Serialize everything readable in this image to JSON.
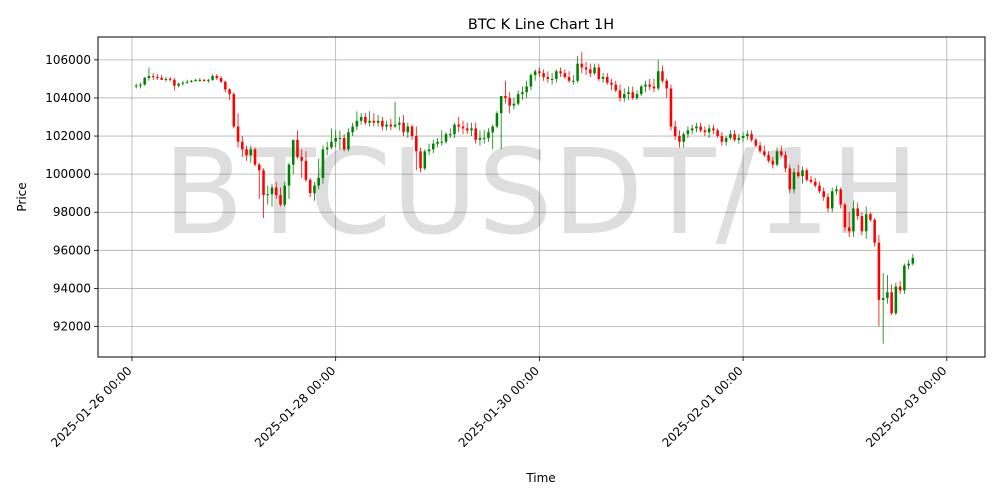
{
  "chart_data": {
    "type": "candlestick",
    "title": "BTC K Line Chart 1H",
    "xlabel": "Time",
    "ylabel": "Price",
    "watermark": "BTCUSDT/1H",
    "grid": true,
    "up_color": "#008000",
    "down_color": "#ff0000",
    "ylim": [
      90400,
      107200
    ],
    "x_range": [
      "2025-01-25 16:00",
      "2025-02-03 09:00"
    ],
    "y_ticks": [
      92000,
      94000,
      96000,
      98000,
      100000,
      102000,
      104000,
      106000
    ],
    "x_ticks": [
      "2025-01-26 00:00",
      "2025-01-28 00:00",
      "2025-01-30 00:00",
      "2025-02-01 00:00",
      "2025-02-03 00:00"
    ],
    "ohlc_start": "2025-01-26 01:00",
    "ohlc_interval": "1H",
    "ohlc_columns": [
      "open",
      "high",
      "low",
      "close"
    ],
    "ohlc": [
      [
        104600,
        104750,
        104500,
        104650
      ],
      [
        104650,
        104800,
        104500,
        104700
      ],
      [
        104700,
        105100,
        104650,
        105050
      ],
      [
        105050,
        105600,
        104900,
        105150
      ],
      [
        105150,
        105300,
        104950,
        105100
      ],
      [
        105100,
        105250,
        104950,
        105050
      ],
      [
        105050,
        105200,
        104950,
        104950
      ],
      [
        104950,
        105100,
        104850,
        105000
      ],
      [
        105000,
        105100,
        104850,
        104950
      ],
      [
        104950,
        105050,
        104400,
        104650
      ],
      [
        104650,
        104800,
        104550,
        104750
      ],
      [
        104750,
        104900,
        104650,
        104800
      ],
      [
        104800,
        104950,
        104750,
        104850
      ],
      [
        104850,
        104950,
        104800,
        104900
      ],
      [
        104900,
        105000,
        104850,
        104950
      ],
      [
        104950,
        105050,
        104850,
        104950
      ],
      [
        104950,
        105000,
        104850,
        104900
      ],
      [
        104900,
        105000,
        104800,
        104950
      ],
      [
        104950,
        105250,
        104900,
        105150
      ],
      [
        105150,
        105250,
        104950,
        105050
      ],
      [
        105050,
        105150,
        104800,
        104850
      ],
      [
        104850,
        104900,
        104300,
        104450
      ],
      [
        104450,
        104500,
        103900,
        104200
      ],
      [
        104200,
        104300,
        102400,
        102500
      ],
      [
        102500,
        103200,
        101400,
        101700
      ],
      [
        101700,
        102000,
        100900,
        101300
      ],
      [
        101300,
        101500,
        100700,
        101000
      ],
      [
        101000,
        101500,
        100600,
        101300
      ],
      [
        101300,
        101400,
        100400,
        100500
      ],
      [
        100500,
        100600,
        98700,
        100200
      ],
      [
        100200,
        100300,
        97700,
        98900
      ],
      [
        98900,
        99400,
        98400,
        98950
      ],
      [
        98950,
        99500,
        98300,
        99300
      ],
      [
        99300,
        99600,
        98700,
        98900
      ],
      [
        98900,
        99300,
        98300,
        98400
      ],
      [
        98400,
        99600,
        98300,
        99400
      ],
      [
        99400,
        100600,
        98700,
        100500
      ],
      [
        100500,
        101800,
        100000,
        101800
      ],
      [
        101800,
        102300,
        100800,
        100900
      ],
      [
        100900,
        101300,
        99800,
        100700
      ],
      [
        100700,
        101200,
        99600,
        99700
      ],
      [
        99700,
        99800,
        98800,
        99000
      ],
      [
        99000,
        99600,
        98600,
        99400
      ],
      [
        99400,
        100800,
        99200,
        99800
      ],
      [
        99800,
        101500,
        99500,
        101300
      ],
      [
        101300,
        101700,
        101000,
        101400
      ],
      [
        101400,
        102400,
        101300,
        101700
      ],
      [
        101700,
        102300,
        101400,
        101900
      ],
      [
        101900,
        102300,
        101300,
        101900
      ],
      [
        101900,
        102100,
        101200,
        101300
      ],
      [
        101300,
        102400,
        101200,
        102200
      ],
      [
        102200,
        102700,
        102000,
        102500
      ],
      [
        102500,
        103300,
        102300,
        102800
      ],
      [
        102800,
        103200,
        102600,
        103000
      ],
      [
        103000,
        103200,
        102600,
        102700
      ],
      [
        102700,
        103300,
        102500,
        102800
      ],
      [
        102800,
        103200,
        102500,
        102700
      ],
      [
        102700,
        103100,
        102500,
        102800
      ],
      [
        102800,
        103000,
        102300,
        102500
      ],
      [
        102500,
        102800,
        102300,
        102600
      ],
      [
        102600,
        102900,
        102300,
        102500
      ],
      [
        102500,
        103800,
        102400,
        102600
      ],
      [
        102600,
        103000,
        102300,
        102700
      ],
      [
        102700,
        103100,
        102000,
        102200
      ],
      [
        102200,
        102700,
        101900,
        102500
      ],
      [
        102500,
        102600,
        101800,
        102000
      ],
      [
        102000,
        102500,
        100200,
        101200
      ],
      [
        101200,
        101400,
        100100,
        100300
      ],
      [
        100300,
        101300,
        100200,
        101200
      ],
      [
        101200,
        101600,
        101000,
        101300
      ],
      [
        101300,
        101800,
        101100,
        101600
      ],
      [
        101600,
        101900,
        101400,
        101700
      ],
      [
        101700,
        102300,
        101500,
        101700
      ],
      [
        101700,
        102200,
        101600,
        102100
      ],
      [
        102100,
        102400,
        101900,
        102100
      ],
      [
        102100,
        102700,
        101900,
        102600
      ],
      [
        102600,
        103000,
        102200,
        102500
      ],
      [
        102500,
        102800,
        102100,
        102400
      ],
      [
        102400,
        102700,
        102100,
        102300
      ],
      [
        102300,
        102700,
        102000,
        102400
      ],
      [
        102400,
        102700,
        101600,
        101800
      ],
      [
        101800,
        102300,
        101500,
        101900
      ],
      [
        101900,
        102300,
        101600,
        101900
      ],
      [
        101900,
        102400,
        101700,
        102200
      ],
      [
        102200,
        102600,
        101300,
        102500
      ],
      [
        102500,
        103300,
        102400,
        103200
      ],
      [
        103200,
        104100,
        101300,
        104100
      ],
      [
        104100,
        104900,
        103700,
        104000
      ],
      [
        104000,
        104300,
        103200,
        103600
      ],
      [
        103600,
        104000,
        103400,
        103700
      ],
      [
        103700,
        104400,
        103600,
        104200
      ],
      [
        104200,
        104600,
        103900,
        104300
      ],
      [
        104300,
        104900,
        104000,
        104600
      ],
      [
        104600,
        105300,
        104400,
        105200
      ],
      [
        105200,
        105500,
        104900,
        105400
      ],
      [
        105400,
        105600,
        105100,
        105300
      ],
      [
        105300,
        105500,
        104900,
        105100
      ],
      [
        105100,
        105400,
        104800,
        105000
      ],
      [
        105000,
        105300,
        104700,
        105000
      ],
      [
        105000,
        105500,
        104800,
        105400
      ],
      [
        105400,
        105600,
        105100,
        105300
      ],
      [
        105300,
        105500,
        105000,
        105100
      ],
      [
        105100,
        105400,
        104800,
        104900
      ],
      [
        104900,
        105200,
        104700,
        104900
      ],
      [
        104900,
        106200,
        104800,
        105800
      ],
      [
        105800,
        106400,
        105300,
        105600
      ],
      [
        105600,
        105900,
        105200,
        105500
      ],
      [
        105500,
        105800,
        105100,
        105300
      ],
      [
        105300,
        105800,
        105200,
        105600
      ],
      [
        105600,
        105800,
        104900,
        105000
      ],
      [
        105000,
        105300,
        104800,
        105100
      ],
      [
        105100,
        105300,
        104700,
        104800
      ],
      [
        104800,
        105000,
        104400,
        104700
      ],
      [
        104700,
        104900,
        104300,
        104400
      ],
      [
        104400,
        104700,
        103800,
        104000
      ],
      [
        104000,
        104500,
        103800,
        104200
      ],
      [
        104200,
        104600,
        103900,
        104300
      ],
      [
        104300,
        104600,
        103900,
        104000
      ],
      [
        104000,
        104400,
        103900,
        104200
      ],
      [
        104200,
        104700,
        104100,
        104600
      ],
      [
        104600,
        104900,
        104300,
        104700
      ],
      [
        104700,
        105000,
        104400,
        104600
      ],
      [
        104600,
        105000,
        104300,
        104500
      ],
      [
        104500,
        106000,
        104400,
        105400
      ],
      [
        105400,
        105700,
        104800,
        104900
      ],
      [
        104900,
        105000,
        104000,
        104500
      ],
      [
        104500,
        104700,
        102300,
        102500
      ],
      [
        102500,
        102800,
        101800,
        102000
      ],
      [
        102000,
        102300,
        101400,
        101700
      ],
      [
        101700,
        102200,
        101400,
        102100
      ],
      [
        102100,
        102500,
        101900,
        102300
      ],
      [
        102300,
        102600,
        102100,
        102400
      ],
      [
        102400,
        102700,
        102200,
        102500
      ],
      [
        102500,
        102700,
        102200,
        102300
      ],
      [
        102300,
        102500,
        102000,
        102200
      ],
      [
        102200,
        102600,
        101900,
        102400
      ],
      [
        102400,
        102600,
        102100,
        102300
      ],
      [
        102300,
        102400,
        101900,
        102000
      ],
      [
        102000,
        102200,
        101500,
        101700
      ],
      [
        101700,
        102000,
        101500,
        101900
      ],
      [
        101900,
        102300,
        101800,
        102100
      ],
      [
        102100,
        102300,
        101700,
        101800
      ],
      [
        101800,
        102100,
        101600,
        101900
      ],
      [
        101900,
        102200,
        101700,
        102000
      ],
      [
        102000,
        102300,
        101800,
        102100
      ],
      [
        102100,
        102300,
        101700,
        101800
      ],
      [
        101800,
        101900,
        101400,
        101500
      ],
      [
        101500,
        101700,
        101100,
        101200
      ],
      [
        101200,
        101500,
        100900,
        101000
      ],
      [
        101000,
        101200,
        100600,
        100700
      ],
      [
        100700,
        100900,
        100300,
        100500
      ],
      [
        100500,
        101400,
        100400,
        101200
      ],
      [
        101200,
        101500,
        100900,
        101000
      ],
      [
        101000,
        101200,
        100100,
        100300
      ],
      [
        100300,
        100500,
        99000,
        99200
      ],
      [
        99200,
        100300,
        99000,
        100100
      ],
      [
        100100,
        100500,
        99800,
        99900
      ],
      [
        99900,
        100400,
        99500,
        100200
      ],
      [
        100200,
        100300,
        99600,
        99700
      ],
      [
        99700,
        99900,
        99500,
        99600
      ],
      [
        99600,
        99800,
        99300,
        99400
      ],
      [
        99400,
        99600,
        99000,
        99100
      ],
      [
        99100,
        99300,
        98600,
        98800
      ],
      [
        98800,
        99000,
        98000,
        98200
      ],
      [
        98200,
        99300,
        98000,
        99100
      ],
      [
        99100,
        99400,
        98900,
        99200
      ],
      [
        99200,
        99300,
        98200,
        98400
      ],
      [
        98400,
        98500,
        97000,
        97200
      ],
      [
        97200,
        98000,
        96700,
        97000
      ],
      [
        97000,
        98600,
        96700,
        98200
      ],
      [
        98200,
        98500,
        97600,
        97800
      ],
      [
        97800,
        98000,
        96800,
        97000
      ],
      [
        97000,
        98300,
        96600,
        97900
      ],
      [
        97900,
        98000,
        97500,
        97600
      ],
      [
        97600,
        97700,
        96200,
        96400
      ],
      [
        96400,
        96800,
        92000,
        93400
      ],
      [
        93400,
        94800,
        91100,
        93500
      ],
      [
        93500,
        94700,
        93200,
        93800
      ],
      [
        93800,
        94200,
        92600,
        92700
      ],
      [
        92700,
        94300,
        92600,
        94100
      ],
      [
        94100,
        94400,
        93700,
        93900
      ],
      [
        93900,
        95300,
        93700,
        95200
      ],
      [
        95200,
        95500,
        95000,
        95300
      ],
      [
        95300,
        95800,
        95200,
        95600
      ]
    ]
  }
}
